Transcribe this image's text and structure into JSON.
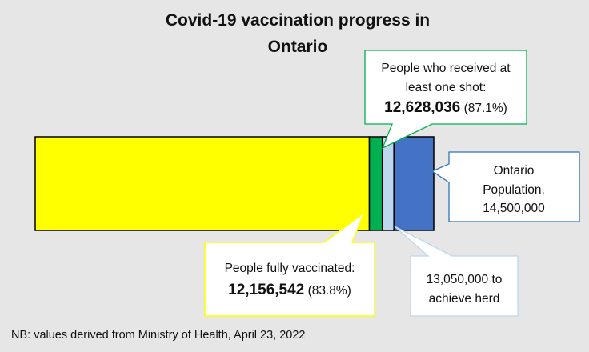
{
  "chart_data": {
    "type": "bar",
    "orientation": "horizontal-stacked",
    "title": "Covid-19 vaccination progress in Ontario",
    "title_lines": [
      "Covid-19 vaccination progress in",
      "Ontario"
    ],
    "xlim": [
      0,
      14500000
    ],
    "axes_visible": false,
    "grid": false,
    "segments": [
      {
        "name": "People fully vaccinated",
        "value": 12156542,
        "color": "#ffff00"
      },
      {
        "name": "People who received at least one shot",
        "value": 12628036,
        "color": "#00b050"
      },
      {
        "name": "Herd target",
        "value": 13050000,
        "color": "#bdd7ee"
      },
      {
        "name": "Ontario Population",
        "value": 14500000,
        "color": "#4472c4"
      }
    ],
    "callouts": {
      "one_shot": {
        "lines": [
          "People who received at",
          "least one shot:"
        ],
        "number": "12,628,036",
        "pct": "(87.1%)",
        "border": "#00b050"
      },
      "population": {
        "lines": [
          "Ontario",
          "Population,",
          "14,500,000"
        ],
        "border": "#2e75b6"
      },
      "fully": {
        "lines": [
          "People fully vaccinated:"
        ],
        "number": "12,156,542",
        "pct": "(83.8%)",
        "border": "#ffff00"
      },
      "herd": {
        "lines": [
          "13,050,000 to",
          "achieve herd"
        ],
        "border": "#bdd7ee"
      }
    },
    "footnote": "NB: values derived from Ministry of Health, April 23, 2022"
  }
}
